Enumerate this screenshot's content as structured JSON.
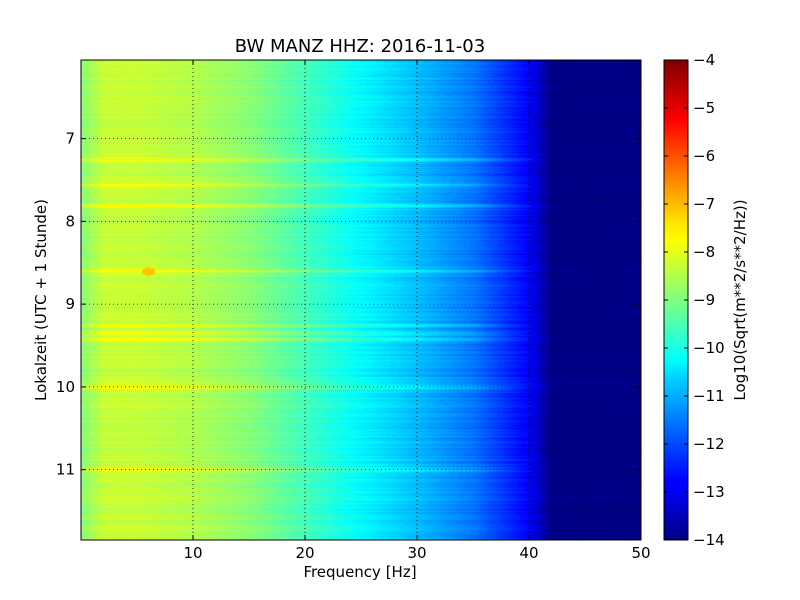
{
  "chart_data": {
    "type": "heatmap",
    "title": "BW MANZ HHZ: 2016-11-03",
    "xlabel": "Frequency [Hz]",
    "ylabel": "Lokalzeit (UTC + 1 Stunde)",
    "xlim": [
      0,
      50
    ],
    "ylim": [
      11.85,
      6.05
    ],
    "xticks": [
      10,
      20,
      30,
      40,
      50
    ],
    "yticks": [
      7,
      8,
      9,
      10,
      11
    ],
    "grid": true,
    "grid_x_values": [
      10,
      20,
      30,
      40
    ],
    "grid_y_values": [
      7,
      8,
      9,
      10,
      11
    ],
    "colormap": "jet",
    "colorbar": {
      "label": "Log10(Sqrt(m**2/s**2/Hz))",
      "range": [
        -14,
        -4
      ],
      "ticks": [
        -4,
        -5,
        -6,
        -7,
        -8,
        -9,
        -10,
        -11,
        -12,
        -13,
        -14
      ],
      "tick_labels": [
        "−4",
        "−5",
        "−6",
        "−7",
        "−8",
        "−9",
        "−10",
        "−11",
        "−12",
        "−13",
        "−14"
      ]
    },
    "spectrum_profile": {
      "frequencies_hz": [
        0,
        2,
        5,
        10,
        15,
        20,
        25,
        30,
        35,
        40,
        42,
        50
      ],
      "log10_amplitude": [
        -8.9,
        -8.3,
        -8.3,
        -8.5,
        -8.9,
        -9.6,
        -10.3,
        -10.9,
        -11.6,
        -12.8,
        -14.0,
        -14.0
      ]
    },
    "noisy_times_hours": [
      7.25,
      7.55,
      7.8,
      8.6,
      9.25,
      9.35,
      9.42,
      10.0,
      11.0
    ],
    "noise_peak_point": {
      "frequency_hz": 6,
      "time_hours": 8.6,
      "log10_amplitude": -7.2
    }
  }
}
